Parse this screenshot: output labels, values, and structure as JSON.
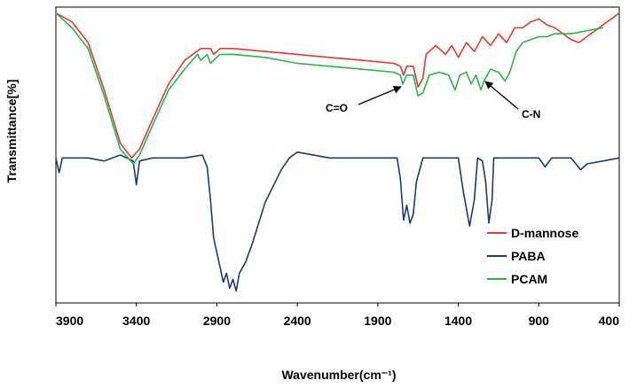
{
  "chart_data": {
    "type": "line",
    "title": "",
    "xlabel": "Wavenumber(cm⁻¹)",
    "ylabel": "Transmittance[%]",
    "xlim": [
      3900,
      400
    ],
    "ylim": [
      0,
      100
    ],
    "x_reversed": true,
    "x_ticks": [
      "3900",
      "3400",
      "2900",
      "2400",
      "1900",
      "1400",
      "900",
      "400"
    ],
    "grid": false,
    "legend_position": "bottom-right",
    "series": [
      {
        "name": "D-mannose",
        "color": "#e03c31",
        "points": [
          [
            3900,
            98
          ],
          [
            3800,
            95
          ],
          [
            3700,
            88
          ],
          [
            3600,
            72
          ],
          [
            3500,
            54
          ],
          [
            3430,
            49
          ],
          [
            3380,
            52
          ],
          [
            3300,
            62
          ],
          [
            3200,
            74
          ],
          [
            3100,
            82
          ],
          [
            3000,
            86
          ],
          [
            2940,
            86
          ],
          [
            2920,
            84
          ],
          [
            2880,
            86
          ],
          [
            2800,
            86
          ],
          [
            2600,
            85
          ],
          [
            2400,
            84
          ],
          [
            2200,
            83
          ],
          [
            2000,
            82
          ],
          [
            1800,
            81
          ],
          [
            1760,
            80
          ],
          [
            1740,
            77
          ],
          [
            1720,
            80
          ],
          [
            1680,
            80
          ],
          [
            1650,
            73
          ],
          [
            1620,
            76
          ],
          [
            1600,
            84
          ],
          [
            1540,
            87
          ],
          [
            1480,
            84
          ],
          [
            1440,
            87
          ],
          [
            1400,
            83
          ],
          [
            1350,
            88
          ],
          [
            1300,
            85
          ],
          [
            1250,
            90
          ],
          [
            1200,
            87
          ],
          [
            1150,
            91
          ],
          [
            1100,
            88
          ],
          [
            1050,
            93
          ],
          [
            1000,
            93
          ],
          [
            950,
            95
          ],
          [
            900,
            96
          ],
          [
            850,
            94
          ],
          [
            800,
            93
          ],
          [
            700,
            89
          ],
          [
            650,
            88
          ],
          [
            600,
            90
          ],
          [
            500,
            94
          ],
          [
            400,
            98
          ]
        ]
      },
      {
        "name": "PABA",
        "color": "#1f3a6e",
        "points": [
          [
            3900,
            49
          ],
          [
            3880,
            44
          ],
          [
            3860,
            49
          ],
          [
            3800,
            49
          ],
          [
            3700,
            49
          ],
          [
            3600,
            48
          ],
          [
            3500,
            50
          ],
          [
            3420,
            48
          ],
          [
            3400,
            40
          ],
          [
            3380,
            48
          ],
          [
            3300,
            49
          ],
          [
            3100,
            49
          ],
          [
            2990,
            50
          ],
          [
            2960,
            46
          ],
          [
            2940,
            35
          ],
          [
            2920,
            22
          ],
          [
            2880,
            12
          ],
          [
            2860,
            7
          ],
          [
            2840,
            10
          ],
          [
            2820,
            5
          ],
          [
            2800,
            8
          ],
          [
            2780,
            4
          ],
          [
            2760,
            10
          ],
          [
            2720,
            14
          ],
          [
            2680,
            20
          ],
          [
            2600,
            34
          ],
          [
            2500,
            45
          ],
          [
            2450,
            49
          ],
          [
            2400,
            51
          ],
          [
            2200,
            49
          ],
          [
            2000,
            49
          ],
          [
            1900,
            49
          ],
          [
            1780,
            49
          ],
          [
            1760,
            42
          ],
          [
            1740,
            28
          ],
          [
            1720,
            33
          ],
          [
            1700,
            27
          ],
          [
            1680,
            30
          ],
          [
            1660,
            41
          ],
          [
            1620,
            49
          ],
          [
            1500,
            49
          ],
          [
            1400,
            49
          ],
          [
            1370,
            38
          ],
          [
            1330,
            26
          ],
          [
            1300,
            35
          ],
          [
            1280,
            49
          ],
          [
            1250,
            48
          ],
          [
            1230,
            41
          ],
          [
            1210,
            27
          ],
          [
            1190,
            35
          ],
          [
            1180,
            49
          ],
          [
            1100,
            49
          ],
          [
            900,
            49
          ],
          [
            860,
            46
          ],
          [
            820,
            49
          ],
          [
            700,
            49
          ],
          [
            640,
            45
          ],
          [
            600,
            47
          ],
          [
            500,
            48
          ],
          [
            400,
            49
          ]
        ]
      },
      {
        "name": "PCAM",
        "color": "#2fb24c",
        "points": [
          [
            3900,
            98
          ],
          [
            3800,
            93
          ],
          [
            3700,
            86
          ],
          [
            3600,
            70
          ],
          [
            3500,
            52
          ],
          [
            3420,
            47
          ],
          [
            3380,
            50
          ],
          [
            3300,
            60
          ],
          [
            3200,
            72
          ],
          [
            3100,
            79
          ],
          [
            3020,
            84
          ],
          [
            3000,
            82
          ],
          [
            2960,
            84
          ],
          [
            2940,
            81
          ],
          [
            2920,
            82
          ],
          [
            2880,
            84
          ],
          [
            2800,
            84
          ],
          [
            2600,
            83
          ],
          [
            2400,
            81
          ],
          [
            2200,
            80
          ],
          [
            2000,
            79
          ],
          [
            1800,
            78
          ],
          [
            1760,
            77
          ],
          [
            1745,
            74
          ],
          [
            1720,
            77
          ],
          [
            1680,
            77
          ],
          [
            1650,
            70
          ],
          [
            1620,
            71
          ],
          [
            1580,
            77
          ],
          [
            1520,
            78
          ],
          [
            1460,
            77
          ],
          [
            1420,
            72
          ],
          [
            1390,
            77
          ],
          [
            1350,
            78
          ],
          [
            1320,
            74
          ],
          [
            1290,
            77
          ],
          [
            1260,
            72
          ],
          [
            1240,
            75
          ],
          [
            1200,
            79
          ],
          [
            1150,
            78
          ],
          [
            1110,
            75
          ],
          [
            1080,
            78
          ],
          [
            1040,
            85
          ],
          [
            1000,
            88
          ],
          [
            950,
            89
          ],
          [
            900,
            90
          ],
          [
            850,
            90
          ],
          [
            800,
            91
          ],
          [
            700,
            91
          ],
          [
            600,
            92
          ],
          [
            500,
            93
          ]
        ]
      }
    ],
    "annotations": [
      {
        "text": "C=O",
        "at_x": 1750
      },
      {
        "text": "C-N",
        "at_x": 1280
      }
    ]
  }
}
